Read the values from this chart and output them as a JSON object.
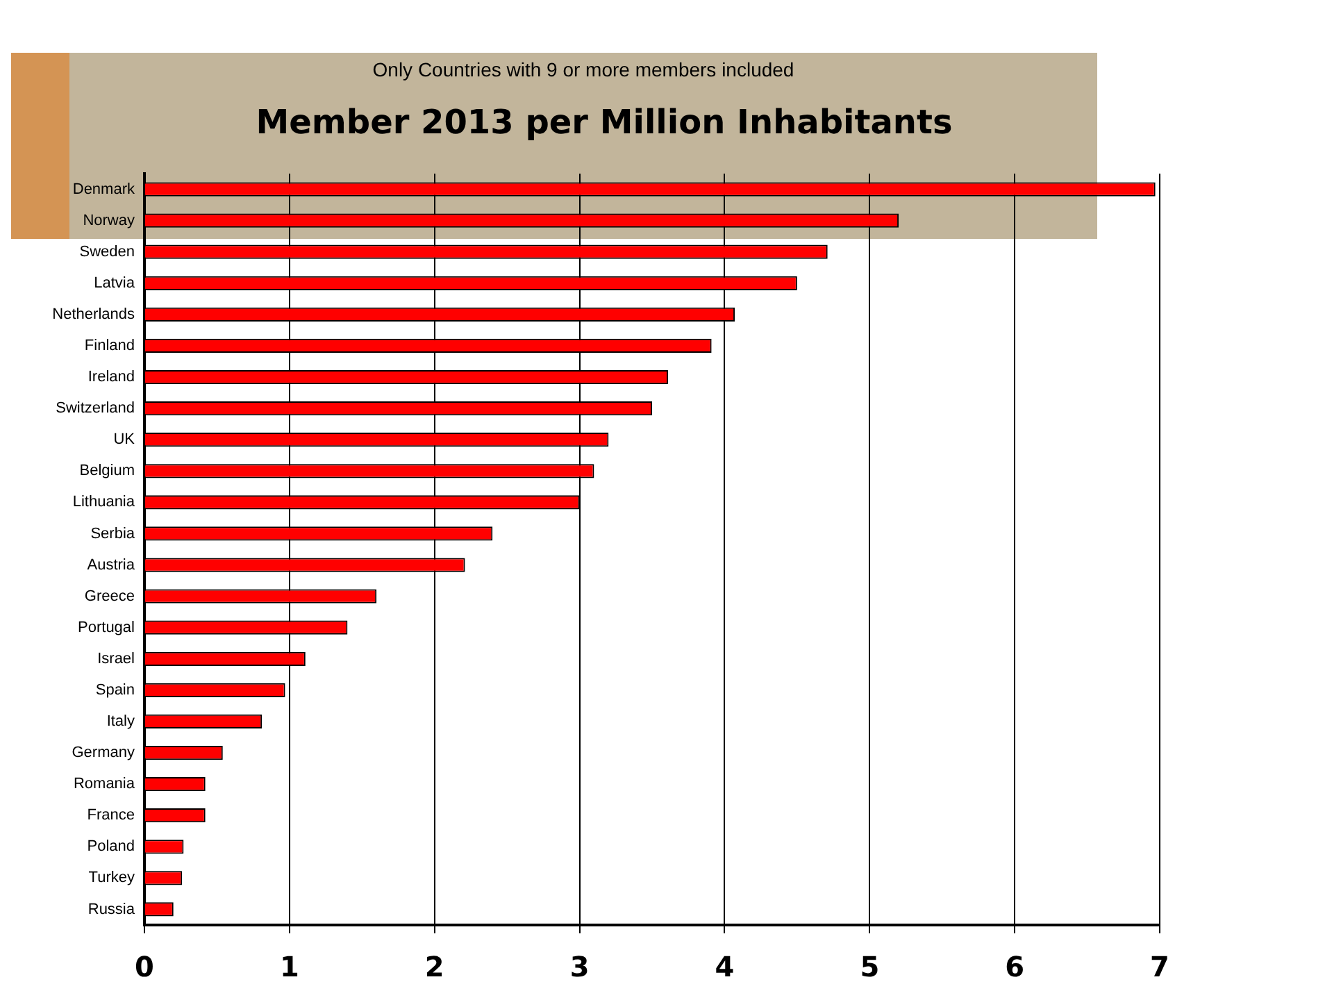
{
  "chart_data": {
    "type": "bar",
    "orientation": "horizontal",
    "title": "Member 2013 per Million Inhabitants",
    "subtitle": "Only Countries with 9 or more members included",
    "categories": [
      "Denmark",
      "Norway",
      "Sweden",
      "Latvia",
      "Netherlands",
      "Finland",
      "Ireland",
      "Switzerland",
      "UK",
      "Belgium",
      "Lithuania",
      "Serbia",
      "Austria",
      "Greece",
      "Portugal",
      "Israel",
      "Spain",
      "Italy",
      "Germany",
      "Romania",
      "France",
      "Poland",
      "Turkey",
      "Russia"
    ],
    "values": [
      6.97,
      5.2,
      4.71,
      4.5,
      4.07,
      3.91,
      3.61,
      3.5,
      3.2,
      3.1,
      3.0,
      2.4,
      2.21,
      1.6,
      1.4,
      1.11,
      0.97,
      0.81,
      0.54,
      0.42,
      0.42,
      0.27,
      0.26,
      0.2
    ],
    "color": "#ff0000",
    "xlim": [
      0,
      7
    ],
    "xticks": [
      0,
      1,
      2,
      3,
      4,
      5,
      6,
      7
    ],
    "grid": "x",
    "legend": false
  }
}
